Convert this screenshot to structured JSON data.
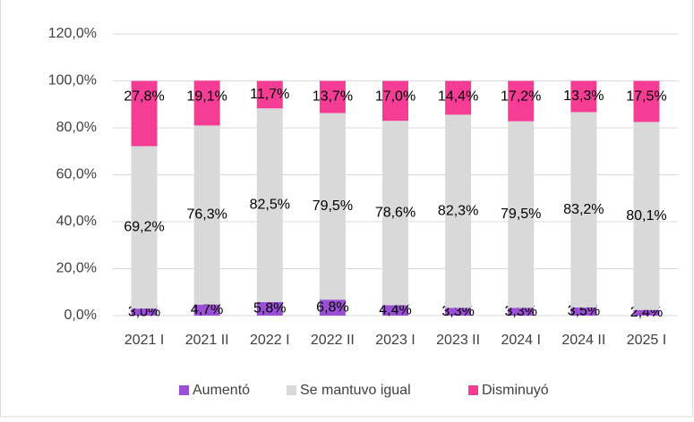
{
  "chart_data": {
    "type": "stacked_bar",
    "categories": [
      "2021 I",
      "2021 II",
      "2022 I",
      "2022 II",
      "2023 I",
      "2023 II",
      "2024 I",
      "2024 II",
      "2025 I"
    ],
    "series": [
      {
        "name": "Aumentó",
        "color": "#9b4fd6",
        "values": [
          3.0,
          4.7,
          5.8,
          6.8,
          4.4,
          3.3,
          3.3,
          3.5,
          2.4
        ],
        "value_labels": [
          "3,0%",
          "4,7%",
          "5,8%",
          "6,8%",
          "4,4%",
          "3,3%",
          "3,3%",
          "3,5%",
          "2,4%"
        ]
      },
      {
        "name": "Se mantuvo igual",
        "color": "#d9d9d9",
        "values": [
          69.2,
          76.3,
          82.5,
          79.5,
          78.6,
          82.3,
          79.5,
          83.2,
          80.1
        ],
        "value_labels": [
          "69,2%",
          "76,3%",
          "82,5%",
          "79,5%",
          "78,6%",
          "82,3%",
          "79,5%",
          "83,2%",
          "80,1%"
        ]
      },
      {
        "name": "Disminuyó",
        "color": "#f53d96",
        "values": [
          27.8,
          19.1,
          11.7,
          13.7,
          17.0,
          14.4,
          17.2,
          13.3,
          17.5
        ],
        "value_labels": [
          "27,8%",
          "19,1%",
          "11,7%",
          "13,7%",
          "17,0%",
          "14,4%",
          "17,2%",
          "13,3%",
          "17,5%"
        ]
      }
    ],
    "ylim": [
      0,
      120
    ],
    "yticks": [
      {
        "value": 0,
        "label": "0,0%"
      },
      {
        "value": 20,
        "label": "20,0%"
      },
      {
        "value": 40,
        "label": "40,0%"
      },
      {
        "value": 60,
        "label": "60,0%"
      },
      {
        "value": 80,
        "label": "80,0%"
      },
      {
        "value": 100,
        "label": "100,0%"
      },
      {
        "value": 120,
        "label": "120,0%"
      }
    ],
    "grid": true,
    "legend": "bottom"
  }
}
